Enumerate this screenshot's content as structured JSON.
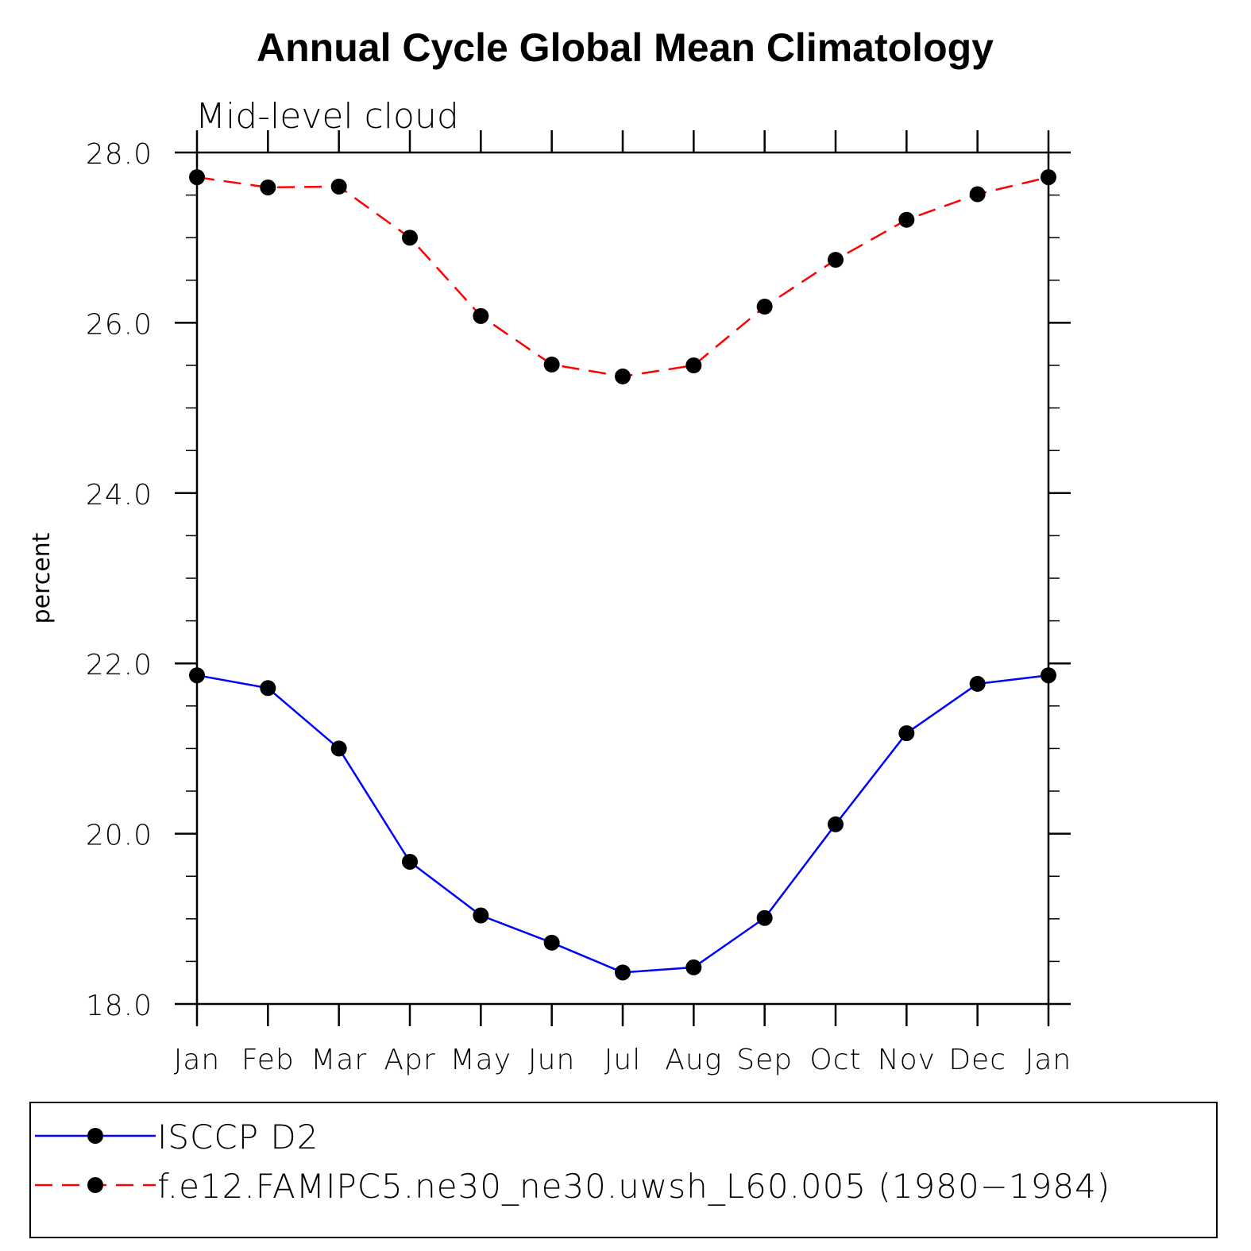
{
  "chart_data": {
    "type": "line",
    "title": "Annual Cycle Global Mean Climatology",
    "subtitle": "Mid-level cloud",
    "ylabel": "percent",
    "xlabel": "",
    "categories": [
      "Jan",
      "Feb",
      "Mar",
      "Apr",
      "May",
      "Jun",
      "Jul",
      "Aug",
      "Sep",
      "Oct",
      "Nov",
      "Dec",
      "Jan"
    ],
    "ylim": [
      18.0,
      28.0
    ],
    "yticks": [
      "18.0",
      "20.0",
      "22.0",
      "24.0",
      "26.0",
      "28.0"
    ],
    "grid": false,
    "legend_position": "bottom",
    "series": [
      {
        "name": "ISCCP D2",
        "color": "#0000ff",
        "style": "solid",
        "marker": "filled-circle",
        "values": [
          21.86,
          21.71,
          21.0,
          19.67,
          19.04,
          18.72,
          18.37,
          18.43,
          19.01,
          20.11,
          21.18,
          21.76,
          21.86
        ]
      },
      {
        "name": "f.e12.FAMIPC5.ne30_ne30.uwsh_L60.005 (1980−1984)",
        "color": "#ff0000",
        "style": "dashed",
        "marker": "filled-circle",
        "values": [
          27.71,
          27.59,
          27.6,
          27.0,
          26.08,
          25.51,
          25.37,
          25.5,
          26.19,
          26.74,
          27.21,
          27.51,
          27.71
        ]
      }
    ]
  }
}
